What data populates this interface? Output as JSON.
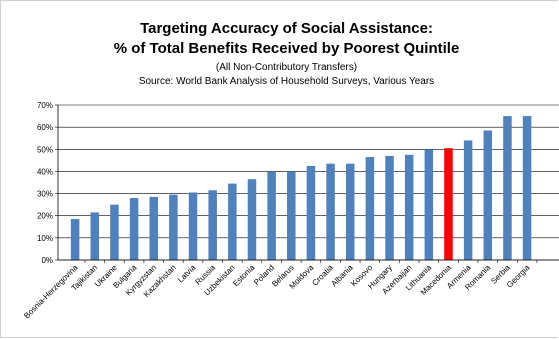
{
  "chart_data": {
    "type": "bar",
    "title": "Targeting Accuracy of Social Assistance:",
    "title2": "% of Total Benefits Received by Poorest Quintile",
    "subtitle": "(All Non-Contributory Transfers)",
    "source": "Source: World Bank Analysis of Household Surveys, Various Years",
    "categories": [
      "Bosnia-Herzegovina",
      "Tajikistan",
      "Ukraine",
      "Bulgaria",
      "Kyrgyzstan",
      "Kazakhstan",
      "Latvia",
      "Russia",
      "Uzbekistan",
      "Estonia",
      "Poland",
      "Belarus",
      "Moldova",
      "Croatia",
      "Albania",
      "Kosovo",
      "Hungary",
      "Azerbaijan",
      "Lithuania",
      "Macedonia",
      "Armenia",
      "Romania",
      "Serbia",
      "Georgia"
    ],
    "values": [
      18.5,
      21.5,
      25,
      28,
      28.5,
      29.5,
      30.5,
      31.5,
      34.5,
      36.5,
      40,
      40,
      42.5,
      43.5,
      43.5,
      46.5,
      47,
      47.5,
      50,
      50.5,
      54,
      58.5,
      65,
      65
    ],
    "highlight_index": 19,
    "bar_color": "#4f81bd",
    "highlight_color": "#ff0000",
    "ylim": [
      0,
      70
    ],
    "yticks": [
      "0%",
      "10%",
      "20%",
      "30%",
      "40%",
      "50%",
      "60%",
      "70%"
    ],
    "xlabel": "",
    "ylabel": "",
    "grid": true,
    "legend": "none"
  }
}
